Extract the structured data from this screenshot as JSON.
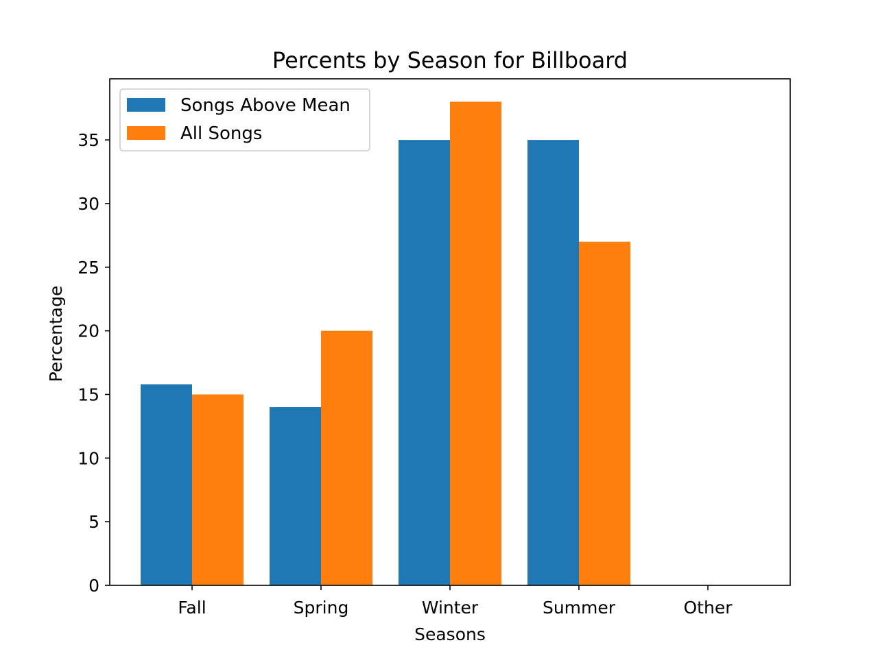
{
  "chart_data": {
    "type": "bar",
    "title": "Percents by Season for Billboard",
    "xlabel": "Seasons",
    "ylabel": "Percentage",
    "categories": [
      "Fall",
      "Spring",
      "Winter",
      "Summer",
      "Other"
    ],
    "series": [
      {
        "name": "Songs Above Mean",
        "color": "#1f77b4",
        "values": [
          15.8,
          14.0,
          35.0,
          35.0,
          0
        ]
      },
      {
        "name": "All Songs",
        "color": "#ff7f0e",
        "values": [
          15.0,
          20.0,
          38.0,
          27.0,
          0
        ]
      }
    ],
    "ylim": [
      0,
      39.8
    ],
    "yticks": [
      0,
      5,
      10,
      15,
      20,
      25,
      30,
      35
    ],
    "grid": false,
    "legend_position": "top-left"
  }
}
